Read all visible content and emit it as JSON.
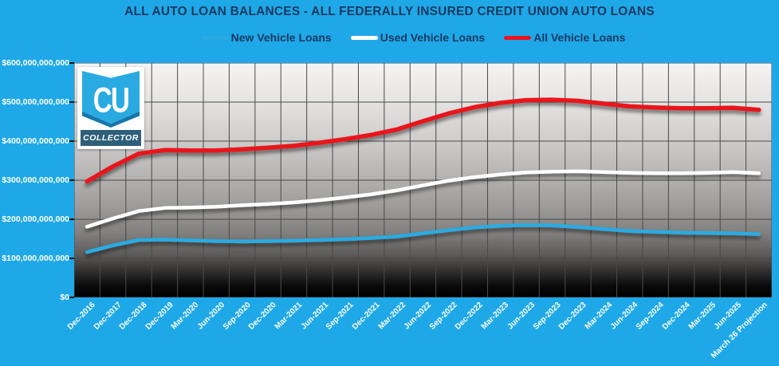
{
  "header": {
    "title": "ALL AUTO LOAN BALANCES - ALL FEDERALLY INSURED CREDIT UNION AUTO LOANS"
  },
  "logo": {
    "monogram": "CU",
    "caption": "COLLECTOR"
  },
  "colors": {
    "background": "#1FA8E8",
    "title_text": "#17395F",
    "axis_text": "#FFFFFF",
    "gridline": "#4A4A4A",
    "new_vehicle_line": "#29ABE2",
    "used_vehicle_line": "#FFFFFF",
    "all_vehicle_line": "#E8141E",
    "logo_shield": "#29ABE2",
    "logo_chevron": "#1578AC",
    "logo_band": "#2E5F79"
  },
  "chart_data": {
    "type": "line",
    "title": "ALL AUTO LOAN BALANCES - ALL FEDERALLY INSURED CREDIT UNION AUTO LOANS",
    "units": "USD (values stored in billions)",
    "legend_position": "top",
    "grid": true,
    "ylim_billions": [
      0,
      600
    ],
    "y_tick_interval_billions": 100,
    "y_tick_labels": [
      "$600,000,000,000",
      "$500,000,000,000",
      "$400,000,000,000",
      "$300,000,000,000",
      "$200,000,000,000",
      "$100,000,000,000",
      "$0"
    ],
    "categories": [
      "Dec-2016",
      "Dec-2017",
      "Dec-2018",
      "Dec-2019",
      "Mar-2020",
      "Jun-2020",
      "Sep-2020",
      "Dec-2020",
      "Mar-2021",
      "Jun-2021",
      "Sep-2021",
      "Dec-2021",
      "Mar-2022",
      "Jun-2022",
      "Sep-2022",
      "Dec-2022",
      "Mar-2023",
      "Jun-2023",
      "Sep-2023",
      "Dec-2023",
      "Mar-2024",
      "Jun-2024",
      "Sep-2024",
      "Dec-2024",
      "Mar-2025",
      "Jun-2025",
      "March 26 Projection"
    ],
    "series": [
      {
        "name": "New Vehicle Loans",
        "color": "#29ABE2",
        "values_billions": [
          116,
          133,
          147,
          148,
          146,
          144,
          143,
          144,
          145,
          147,
          149,
          152,
          156,
          164,
          172,
          179,
          183,
          185,
          184,
          180,
          175,
          170,
          168,
          166,
          165,
          164,
          162
        ]
      },
      {
        "name": "Used Vehicle Loans",
        "color": "#FFFFFF",
        "values_billions": [
          181,
          202,
          221,
          229,
          230,
          232,
          236,
          239,
          243,
          249,
          256,
          264,
          274,
          287,
          299,
          308,
          315,
          320,
          322,
          323,
          321,
          319,
          318,
          318,
          319,
          321,
          318
        ]
      },
      {
        "name": "All Vehicle Loans",
        "color": "#E8141E",
        "values_billions": [
          297,
          335,
          368,
          377,
          376,
          376,
          379,
          383,
          388,
          396,
          405,
          416,
          430,
          451,
          471,
          487,
          498,
          505,
          506,
          503,
          496,
          489,
          486,
          484,
          484,
          485,
          480
        ]
      }
    ]
  }
}
